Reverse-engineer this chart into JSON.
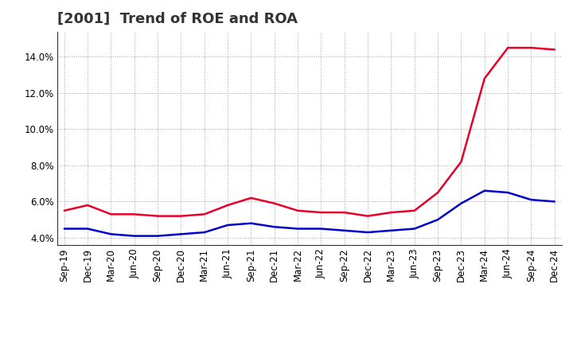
{
  "title": "[2001]  Trend of ROE and ROA",
  "x_labels": [
    "Sep-19",
    "Dec-19",
    "Mar-20",
    "Jun-20",
    "Sep-20",
    "Dec-20",
    "Mar-21",
    "Jun-21",
    "Sep-21",
    "Dec-21",
    "Mar-22",
    "Jun-22",
    "Sep-22",
    "Dec-22",
    "Mar-23",
    "Jun-23",
    "Sep-23",
    "Dec-23",
    "Mar-24",
    "Jun-24",
    "Sep-24",
    "Dec-24"
  ],
  "roe": [
    5.5,
    5.8,
    5.3,
    5.3,
    5.2,
    5.2,
    5.3,
    5.8,
    6.2,
    5.9,
    5.5,
    5.4,
    5.4,
    5.2,
    5.4,
    5.5,
    6.5,
    8.2,
    12.8,
    14.5,
    14.5,
    14.4
  ],
  "roa": [
    4.5,
    4.5,
    4.2,
    4.1,
    4.1,
    4.2,
    4.3,
    4.7,
    4.8,
    4.6,
    4.5,
    4.5,
    4.4,
    4.3,
    4.4,
    4.5,
    5.0,
    5.9,
    6.6,
    6.5,
    6.1,
    6.0
  ],
  "roe_color": "#e8002a",
  "roa_color": "#0000cc",
  "ylim": [
    3.6,
    15.4
  ],
  "yticks": [
    4.0,
    6.0,
    8.0,
    10.0,
    12.0,
    14.0
  ],
  "background_color": "#ffffff",
  "grid_color": "#999999",
  "title_fontsize": 13,
  "legend_fontsize": 10,
  "tick_fontsize": 8.5,
  "linewidth": 1.8
}
